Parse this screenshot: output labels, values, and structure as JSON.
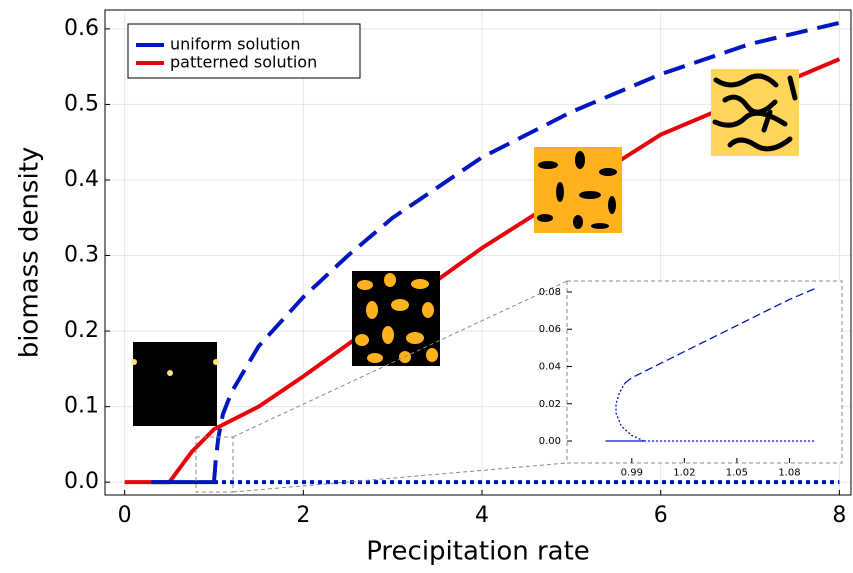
{
  "chart_data": [
    {
      "type": "line",
      "xlabel": "Precipitation rate",
      "ylabel": "biomass density",
      "xlim": [
        -0.22,
        8.13
      ],
      "ylim": [
        -0.017,
        0.625
      ],
      "xticks": [
        0,
        2,
        4,
        6,
        8
      ],
      "yticks": [
        {
          "value": 0,
          "label": "0.0"
        },
        0.1,
        0.2,
        0.3,
        0.4,
        0.5,
        0.6
      ],
      "grid": true,
      "legend": "upper left",
      "series": [
        {
          "name": "uniform solution",
          "color": "#0016c0",
          "linestyle": "solid",
          "x": [
            0.3,
            1.0
          ],
          "values": [
            0,
            0
          ]
        },
        {
          "name": "patterned solution",
          "color": "#e8000b",
          "linestyle": "solid",
          "x": [
            0,
            0.5,
            0.75,
            1.0,
            1.5,
            2,
            3,
            4,
            5,
            6,
            7,
            8
          ],
          "values": [
            0,
            0,
            0.04,
            0.07,
            0.1,
            0.14,
            0.225,
            0.31,
            0.385,
            0.46,
            0.51,
            0.56
          ]
        },
        {
          "color": "#0016c0",
          "linestyle": "dashed",
          "x": [
            1.0,
            1.02,
            1.05,
            1.1,
            1.2,
            1.5,
            2,
            2.5,
            3,
            3.5,
            4,
            5,
            6,
            7,
            8
          ],
          "values": [
            0,
            0.03,
            0.06,
            0.09,
            0.12,
            0.18,
            0.245,
            0.3,
            0.35,
            0.39,
            0.43,
            0.49,
            0.54,
            0.58,
            0.608
          ]
        },
        {
          "color": "#0016c0",
          "linestyle": "dotted",
          "x": [
            1.0,
            8
          ],
          "values": [
            0,
            0
          ]
        }
      ]
    },
    {
      "type": "line",
      "xlim": [
        0.953,
        1.11
      ],
      "ylim": [
        -0.0118,
        0.0859
      ],
      "xticks": [
        0.99,
        1.02,
        1.05,
        1.08
      ],
      "yticks": [
        {
          "value": 0,
          "label": "0.00"
        },
        0.02,
        0.04,
        0.06,
        0.08
      ],
      "grid": false,
      "series": [
        {
          "color": "#0016c0",
          "linestyle": "solid",
          "x": [
            0.975,
            0.997
          ],
          "values": [
            0,
            0
          ]
        },
        {
          "color": "#0016c0",
          "linestyle": "dotted",
          "x": [
            0.997,
            1.095
          ],
          "values": [
            0,
            0
          ]
        },
        {
          "color": "#0016c0",
          "linestyle": "dotted",
          "x": [
            0.997,
            0.99,
            0.984,
            0.981,
            0.981,
            0.983,
            0.986
          ],
          "values": [
            0,
            0.003,
            0.008,
            0.015,
            0.02,
            0.026,
            0.031
          ]
        },
        {
          "color": "#0016c0",
          "linestyle": "dashed",
          "x": [
            0.986,
            0.99,
            1.02,
            1.05,
            1.08,
            1.095
          ],
          "values": [
            0.031,
            0.034,
            0.048,
            0.062,
            0.076,
            0.082
          ]
        }
      ]
    }
  ]
}
